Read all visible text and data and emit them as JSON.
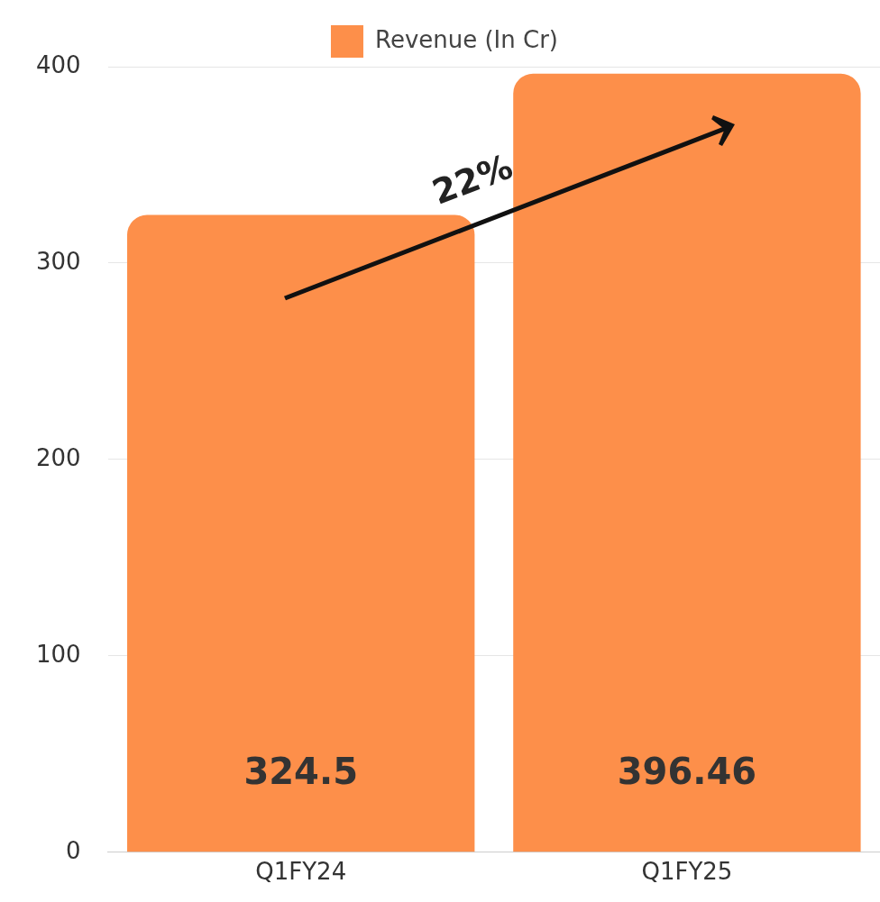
{
  "chart_data": {
    "type": "bar",
    "categories": [
      "Q1FY24",
      "Q1FY25"
    ],
    "series": [
      {
        "name": "Revenue (In Cr)",
        "color": "#fd8f4a",
        "values": [
          324.5,
          396.46
        ]
      }
    ],
    "ylim": [
      0,
      400
    ],
    "yticks": [
      0,
      100,
      200,
      300,
      400
    ],
    "grid": "y",
    "legend": "top",
    "data_labels": true,
    "annotations": [
      "22%"
    ]
  }
}
